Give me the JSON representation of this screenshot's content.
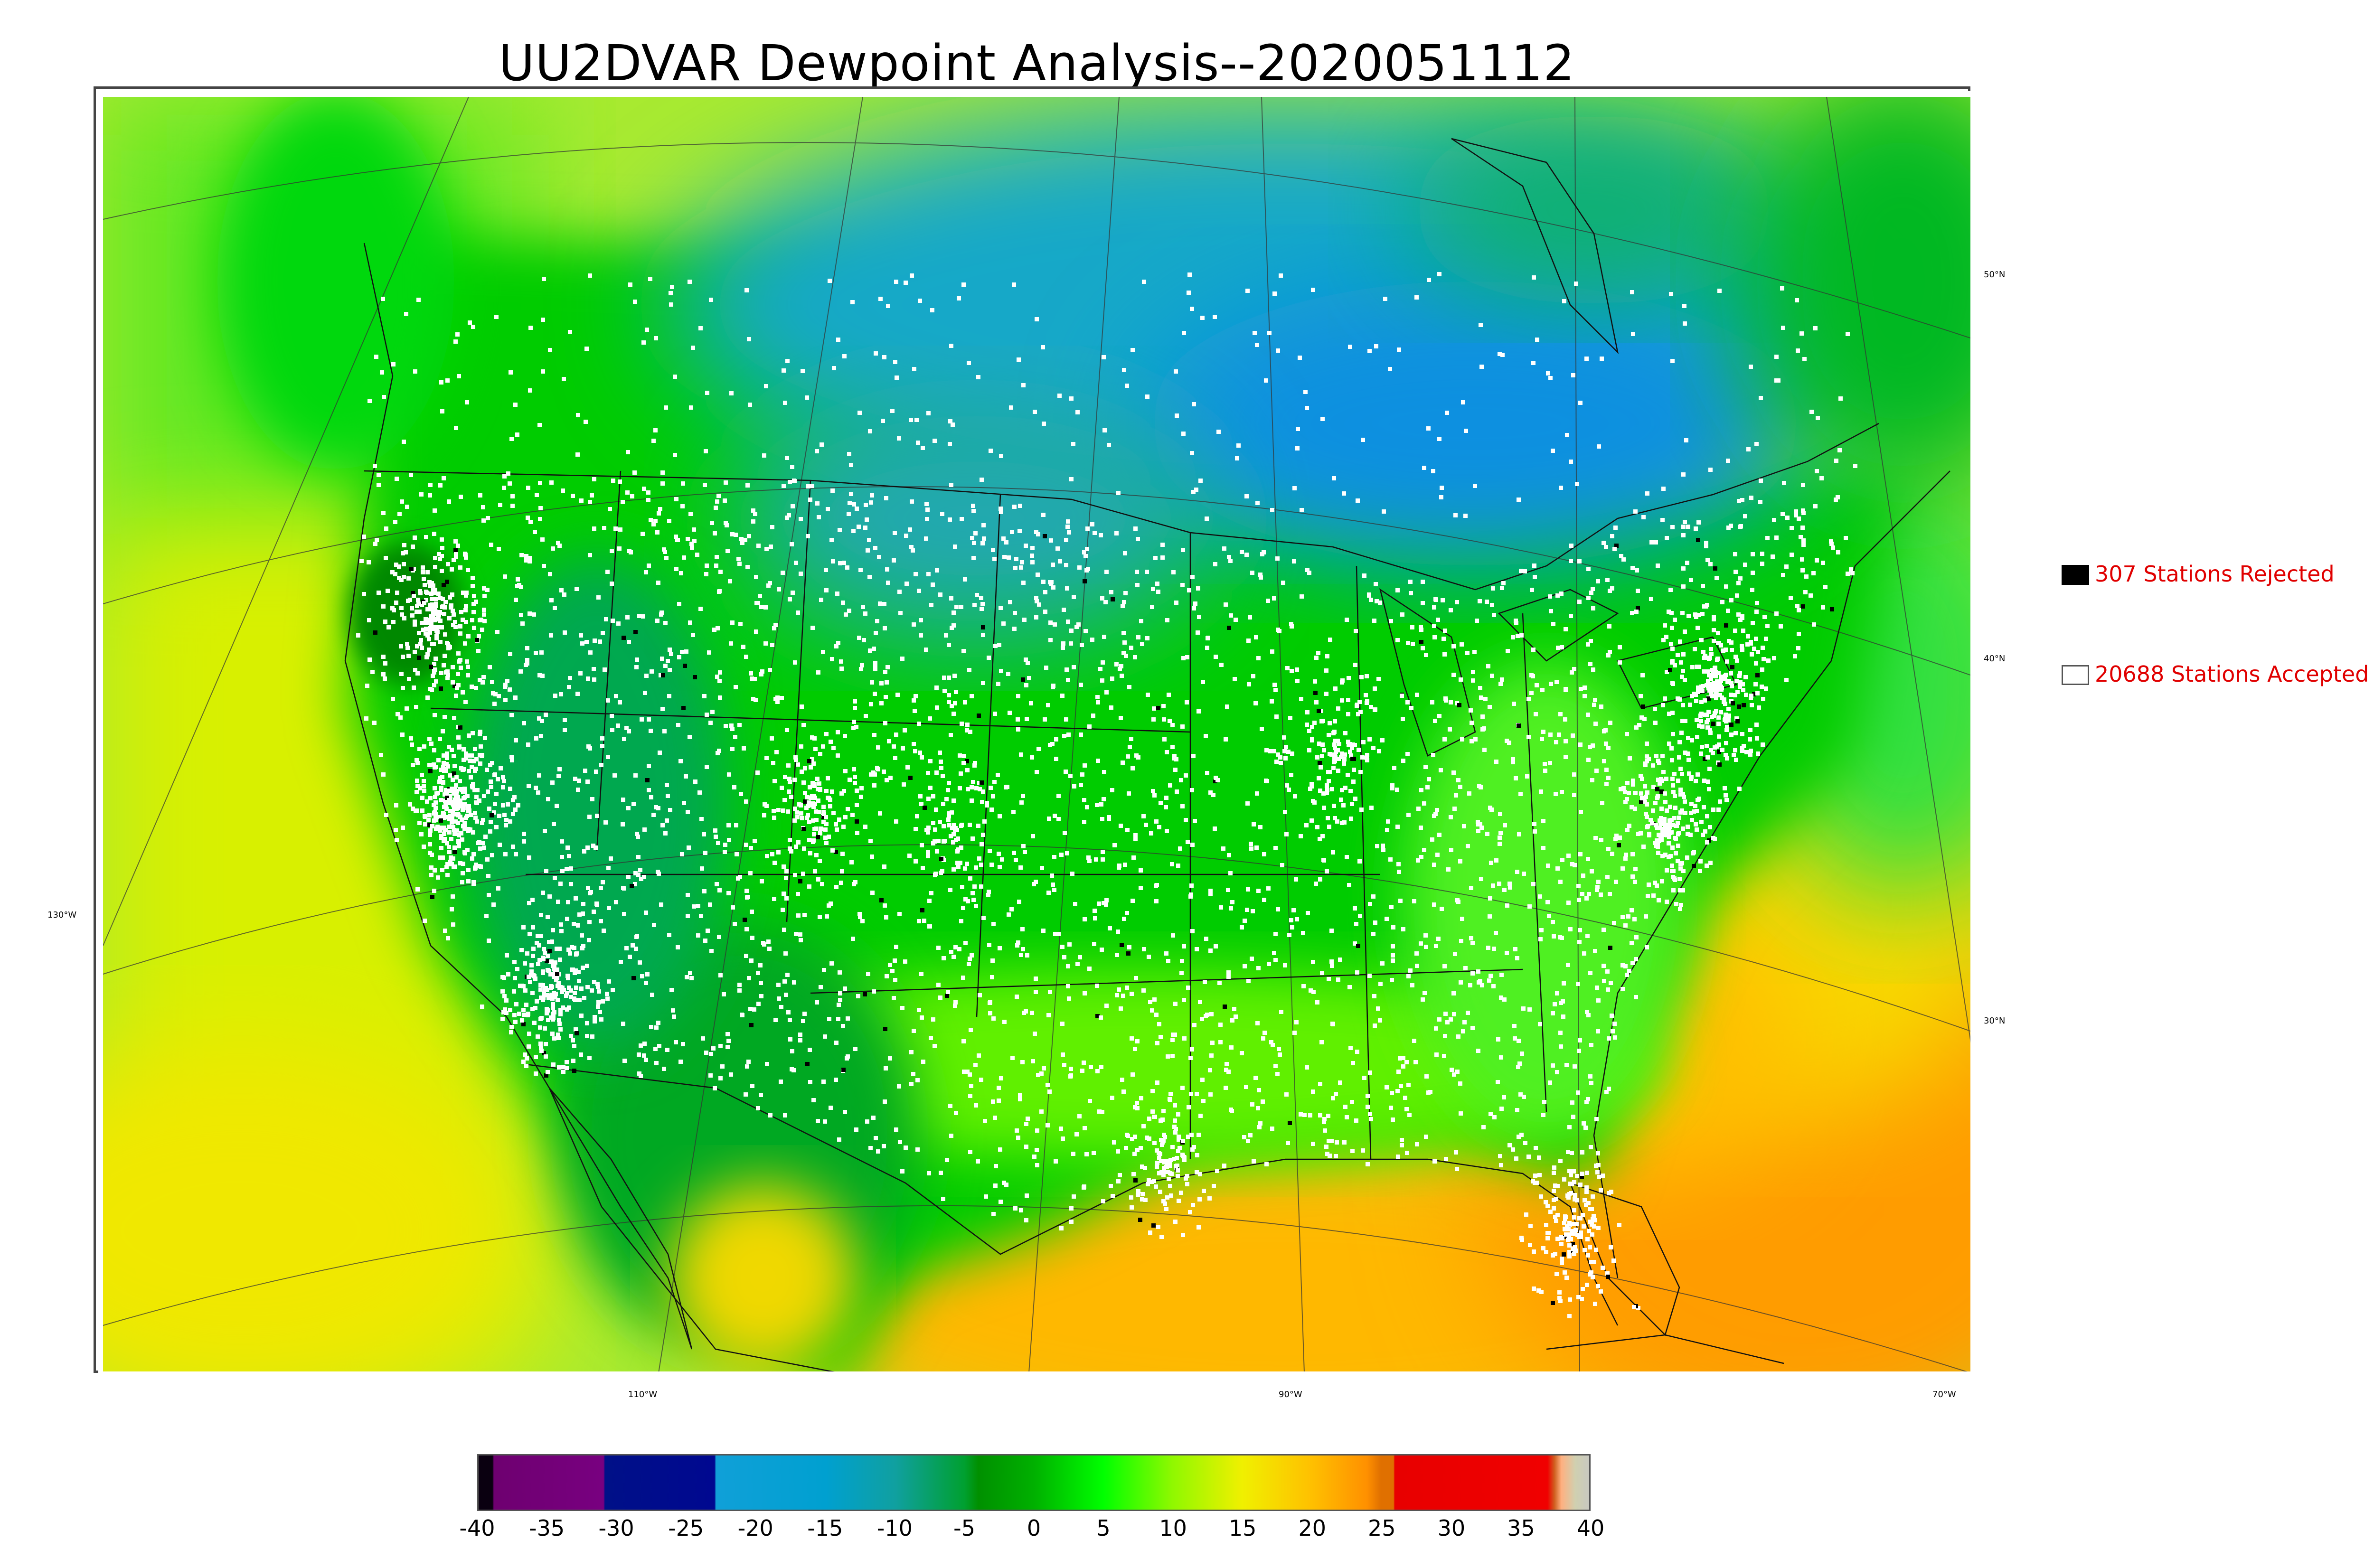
{
  "title": "UU2DVAR Dewpoint Analysis--2020051112",
  "legend": {
    "rejected": {
      "label": "307 Stations Rejected",
      "color": "#000000"
    },
    "accepted": {
      "label": "20688 Stations Accepted",
      "color": "#ffffff"
    }
  },
  "lat_labels": [
    "50°N",
    "40°N",
    "30°N"
  ],
  "lon_labels": [
    "130°W",
    "110°W",
    "90°W",
    "70°W"
  ],
  "colorbar": {
    "ticks": [
      "-40",
      "-35",
      "-30",
      "-25",
      "-20",
      "-15",
      "-10",
      "-5",
      "0",
      "5",
      "10",
      "15",
      "20",
      "25",
      "30",
      "35",
      "40"
    ],
    "min": -40,
    "max": 40,
    "stops": [
      {
        "v": -40,
        "c": "#0a0010"
      },
      {
        "v": -39,
        "c": "#0a0010"
      },
      {
        "v": -38.9,
        "c": "#6e0070"
      },
      {
        "v": -31,
        "c": "#780080"
      },
      {
        "v": -30.9,
        "c": "#001088"
      },
      {
        "v": -23,
        "c": "#000890"
      },
      {
        "v": -22.9,
        "c": "#10a0d8"
      },
      {
        "v": -15,
        "c": "#00a0d0"
      },
      {
        "v": -10,
        "c": "#10a0a0"
      },
      {
        "v": -5,
        "c": "#00a030"
      },
      {
        "v": -4,
        "c": "#009000"
      },
      {
        "v": 0,
        "c": "#00b000"
      },
      {
        "v": 5,
        "c": "#00ff00"
      },
      {
        "v": 10,
        "c": "#90f800"
      },
      {
        "v": 15,
        "c": "#f0f000"
      },
      {
        "v": 20,
        "c": "#ffc000"
      },
      {
        "v": 24,
        "c": "#ff9000"
      },
      {
        "v": 25,
        "c": "#e07000"
      },
      {
        "v": 25.9,
        "c": "#e07000"
      },
      {
        "v": 26,
        "c": "#e80000"
      },
      {
        "v": 37,
        "c": "#f00000"
      },
      {
        "v": 37.5,
        "c": "#d06020"
      },
      {
        "v": 38,
        "c": "#ffb080"
      },
      {
        "v": 39,
        "c": "#d0d0b0"
      },
      {
        "v": 40,
        "c": "#c8c8c0"
      }
    ]
  },
  "colors": {
    "ocean_west": "#b8f020",
    "ocean_gulf": "#ffb400",
    "land_dry": "#00c800",
    "canada_cold": "#10a8c8",
    "station_accepted": "#ffffff",
    "station_rejected": "#000000"
  }
}
